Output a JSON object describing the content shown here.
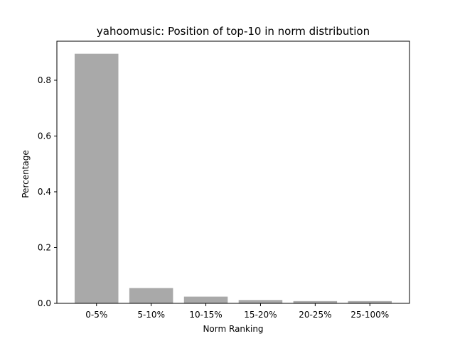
{
  "chart_data": {
    "type": "bar",
    "title": "yahoomusic: Position of top-10 in norm distribution",
    "xlabel": "Norm Ranking",
    "ylabel": "Percentage",
    "categories": [
      "0-5%",
      "5-10%",
      "10-15%",
      "15-20%",
      "20-25%",
      "25-100%"
    ],
    "values": [
      0.895,
      0.055,
      0.024,
      0.012,
      0.008,
      0.008
    ],
    "ylim": [
      0,
      0.94
    ],
    "yticks": [
      0.0,
      0.2,
      0.4,
      0.6,
      0.8
    ],
    "ytick_labels": [
      "0.0",
      "0.2",
      "0.4",
      "0.6",
      "0.8"
    ],
    "bar_color": "#a9a9a9",
    "grid": false,
    "legend": "none"
  }
}
